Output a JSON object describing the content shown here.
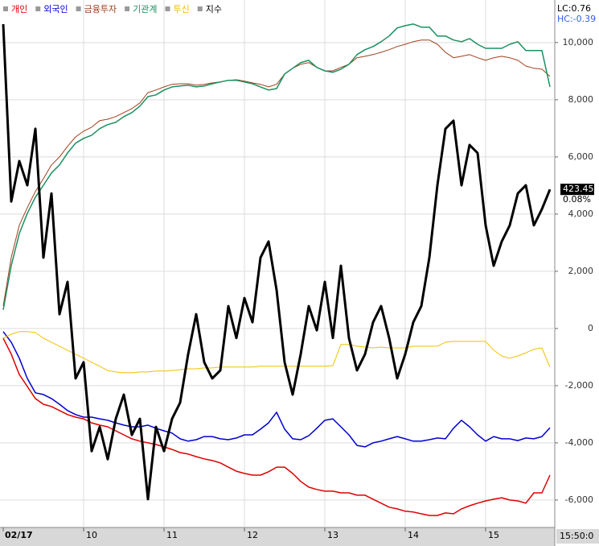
{
  "chart_data": {
    "type": "line",
    "legend": [
      "개인",
      "외국인",
      "금융투자",
      "기관계",
      "투신",
      "지수"
    ],
    "info_labels": [
      "LC:0.76",
      "HC:-0.39"
    ],
    "cursor_label": "15:50:0",
    "last_value_label": "423.45",
    "last_change_label": "0.08%",
    "x": [
      0,
      1,
      2,
      3,
      4,
      5,
      6,
      7,
      8,
      9,
      10,
      11,
      12,
      13,
      14,
      15,
      16,
      17,
      18,
      19,
      20,
      21,
      22,
      23,
      24,
      25,
      26,
      27,
      28,
      29,
      30,
      31,
      32,
      33,
      34,
      35,
      36,
      37,
      38,
      39,
      40,
      41,
      42,
      43,
      44,
      45,
      46,
      47,
      48,
      49,
      50,
      51,
      52,
      53,
      54,
      55,
      56,
      57,
      58,
      59,
      60,
      61,
      62,
      63,
      64,
      65,
      66,
      67,
      68
    ],
    "xlim": [
      0,
      68.6
    ],
    "xticks": [
      {
        "value": 0,
        "label": "02/17"
      },
      {
        "value": 10,
        "label": "10"
      },
      {
        "value": 20,
        "label": "11"
      },
      {
        "value": 30,
        "label": "12"
      },
      {
        "value": 40,
        "label": "13"
      },
      {
        "value": 50,
        "label": "14"
      },
      {
        "value": 60,
        "label": "15"
      }
    ],
    "ylim": [
      -6960,
      10700
    ],
    "yticks": [
      {
        "value": -6000,
        "label": "-6,000"
      },
      {
        "value": -4000,
        "label": "-4,000"
      },
      {
        "value": -2000,
        "label": "-2,000"
      },
      0,
      {
        "value": 2000,
        "label": "2,000"
      },
      {
        "value": 4000,
        "label": "4,000"
      },
      {
        "value": 6000,
        "label": "6,000"
      },
      {
        "value": 8000,
        "label": "8,000"
      },
      {
        "value": 10000,
        "label": "10,000"
      }
    ],
    "y2lim": [
      415.08,
      427.58
    ],
    "grid": true,
    "series": [
      {
        "name": "개인",
        "color": "#e00000",
        "width": 1.5,
        "values": [
          -340,
          -900,
          -1610,
          -2030,
          -2450,
          -2650,
          -2730,
          -2870,
          -3010,
          -3100,
          -3160,
          -3300,
          -3380,
          -3440,
          -3580,
          -3720,
          -3860,
          -3940,
          -4000,
          -4060,
          -4140,
          -4230,
          -4340,
          -4390,
          -4480,
          -4560,
          -4620,
          -4700,
          -4850,
          -4990,
          -5070,
          -5130,
          -5130,
          -5010,
          -4850,
          -4850,
          -5070,
          -5350,
          -5550,
          -5630,
          -5690,
          -5690,
          -5750,
          -5750,
          -5830,
          -5830,
          -5970,
          -6110,
          -6250,
          -6310,
          -6390,
          -6420,
          -6480,
          -6540,
          -6540,
          -6450,
          -6480,
          -6310,
          -6200,
          -6110,
          -6030,
          -5970,
          -5920,
          -6000,
          -6030,
          -6110,
          -5750,
          -5750,
          -5130
        ]
      },
      {
        "name": "외국인",
        "color": "#0000d0",
        "width": 1.5,
        "values": [
          -110,
          -480,
          -1040,
          -1750,
          -2250,
          -2310,
          -2450,
          -2650,
          -2870,
          -3010,
          -3100,
          -3100,
          -3160,
          -3210,
          -3300,
          -3380,
          -3440,
          -3440,
          -3380,
          -3490,
          -3580,
          -3660,
          -3860,
          -3940,
          -3890,
          -3780,
          -3780,
          -3860,
          -3890,
          -3830,
          -3720,
          -3720,
          -3520,
          -3300,
          -2930,
          -3520,
          -3860,
          -3890,
          -3750,
          -3490,
          -3210,
          -3160,
          -3440,
          -3720,
          -4090,
          -4140,
          -4000,
          -3940,
          -3860,
          -3780,
          -3860,
          -3940,
          -3940,
          -3890,
          -3830,
          -3860,
          -3490,
          -3210,
          -3440,
          -3720,
          -3940,
          -3780,
          -3860,
          -3860,
          -3920,
          -3830,
          -3860,
          -3780,
          -3470
        ]
      },
      {
        "name": "금융투자",
        "color": "#a0401c",
        "width": 1,
        "values": [
          790,
          2480,
          3610,
          4230,
          4790,
          5240,
          5720,
          6000,
          6370,
          6700,
          6900,
          7040,
          7270,
          7320,
          7410,
          7550,
          7690,
          7890,
          8250,
          8340,
          8450,
          8540,
          8560,
          8560,
          8510,
          8540,
          8590,
          8620,
          8680,
          8700,
          8650,
          8590,
          8540,
          8450,
          8540,
          8900,
          9100,
          9240,
          9300,
          9130,
          9010,
          9010,
          9130,
          9240,
          9470,
          9520,
          9580,
          9660,
          9750,
          9860,
          9940,
          10030,
          10090,
          10090,
          9940,
          9660,
          9470,
          9520,
          9580,
          9470,
          9380,
          9470,
          9520,
          9470,
          9380,
          9180,
          9100,
          9070,
          8820
        ]
      },
      {
        "name": "기관계",
        "color": "#1a9060",
        "width": 1.5,
        "values": [
          650,
          2200,
          3320,
          4030,
          4590,
          5010,
          5440,
          5720,
          6140,
          6480,
          6650,
          6760,
          6990,
          7130,
          7210,
          7410,
          7550,
          7780,
          8110,
          8170,
          8340,
          8450,
          8480,
          8510,
          8450,
          8480,
          8560,
          8620,
          8680,
          8680,
          8620,
          8560,
          8450,
          8340,
          8390,
          8900,
          9100,
          9300,
          9380,
          9130,
          9010,
          8960,
          9070,
          9240,
          9580,
          9750,
          9860,
          10030,
          10230,
          10510,
          10590,
          10650,
          10540,
          10540,
          10230,
          10230,
          10090,
          10030,
          10140,
          9940,
          9800,
          9800,
          9800,
          9940,
          10030,
          9720,
          9720,
          9720,
          8450
        ]
      },
      {
        "name": "투신",
        "color": "#f0c000",
        "width": 1,
        "values": [
          -340,
          -200,
          -110,
          -110,
          -140,
          -340,
          -480,
          -620,
          -760,
          -900,
          -1040,
          -1180,
          -1320,
          -1470,
          -1520,
          -1550,
          -1550,
          -1520,
          -1520,
          -1490,
          -1490,
          -1470,
          -1440,
          -1410,
          -1410,
          -1380,
          -1380,
          -1350,
          -1350,
          -1350,
          -1350,
          -1350,
          -1320,
          -1320,
          -1320,
          -1320,
          -1320,
          -1320,
          -1320,
          -1320,
          -1320,
          -1300,
          -560,
          -560,
          -620,
          -650,
          -680,
          -650,
          -680,
          -680,
          -680,
          -620,
          -620,
          -620,
          -620,
          -480,
          -450,
          -450,
          -450,
          -450,
          -450,
          -760,
          -960,
          -1040,
          -960,
          -850,
          -730,
          -680,
          -1350
        ]
      },
      {
        "name": "지수",
        "color": "#000000",
        "width": 3,
        "axis": "y2",
        "values": [
          427.54,
          423.15,
          424.15,
          423.55,
          424.95,
          421.76,
          423.35,
          420.36,
          421.16,
          418.77,
          419.17,
          416.97,
          417.57,
          416.77,
          417.77,
          418.37,
          417.37,
          417.77,
          415.78,
          417.57,
          416.97,
          417.77,
          418.17,
          419.37,
          420.36,
          419.17,
          418.77,
          418.97,
          420.56,
          419.77,
          420.76,
          420.16,
          421.76,
          422.16,
          420.96,
          419.17,
          418.37,
          419.37,
          420.56,
          419.96,
          421.16,
          419.77,
          421.56,
          419.77,
          418.97,
          419.37,
          420.16,
          420.56,
          419.77,
          418.77,
          419.37,
          420.16,
          420.56,
          421.76,
          423.55,
          424.95,
          425.15,
          423.55,
          424.55,
          424.35,
          422.56,
          421.56,
          422.16,
          422.56,
          423.35,
          423.55,
          422.56,
          422.96,
          423.45
        ]
      }
    ]
  }
}
